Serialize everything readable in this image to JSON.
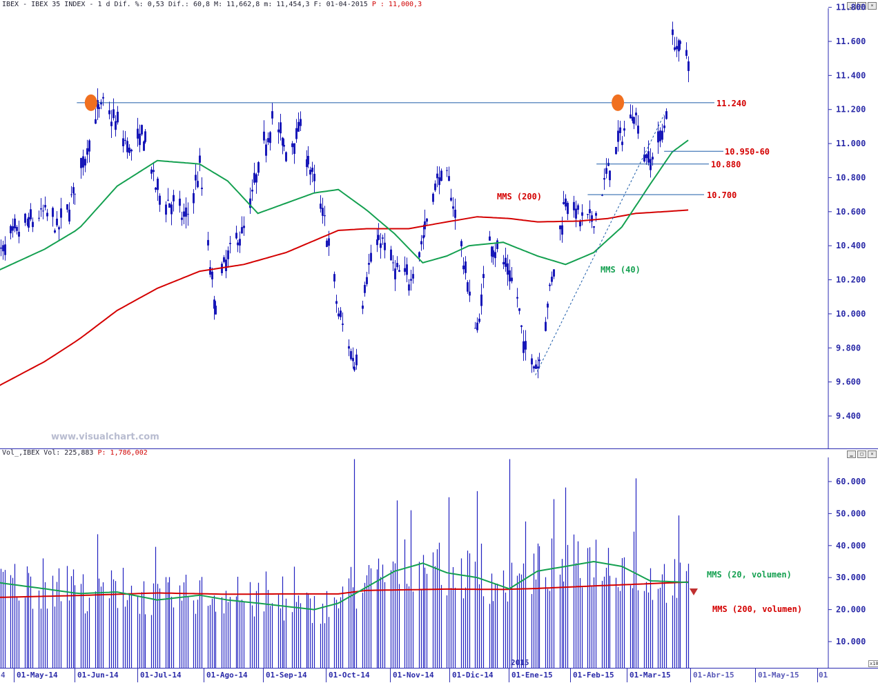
{
  "price_header": {
    "text": "IBEX - IBEX 35 INDEX -  1 d Dif. %: 0,53 Dif.: 60,8 M: 11,662,8 m: 11,454,3 F: 01-04-2015",
    "last_text": "P : 11,000,3"
  },
  "volume_header": {
    "text": "Vol_,IBEX Vol: 225,883",
    "last_text": "P: 1,786,002"
  },
  "watermark": "www.visualchart.com",
  "colors": {
    "price_bars": "#1818b8",
    "mms40": "#14a050",
    "mms200": "#d40000",
    "resistance": "#1a5aa8",
    "marker": "#f07020",
    "axis": "#2a2ab0"
  },
  "x_axis": {
    "year_label": "2015",
    "scale_tag": "x10",
    "labels": [
      "4",
      "01-May-14",
      "01-Jun-14",
      "01-Jul-14",
      "01-Ago-14",
      "01-Sep-14",
      "01-Oct-14",
      "01-Nov-14",
      "01-Dic-14",
      "01-Ene-15",
      "01-Feb-15",
      "01-Mar-15",
      "01-Abr-15",
      "01-May-15",
      "01"
    ]
  },
  "chart_data": [
    {
      "type": "candlestick",
      "title": "IBEX - IBEX 35 INDEX - 1 d",
      "x_range": [
        "2014-04-21",
        "2015-04-01"
      ],
      "ylim": [
        9300,
        11800
      ],
      "y_ticks": [
        "11.800",
        "11.600",
        "11.400",
        "11.200",
        "11.000",
        "10.800",
        "10.600",
        "10.400",
        "10.200",
        "10.000",
        "9.800",
        "9.600",
        "9.400"
      ],
      "y_tick_values": [
        11800,
        11600,
        11400,
        11200,
        11000,
        10800,
        10600,
        10400,
        10200,
        10000,
        9800,
        9600,
        9400
      ],
      "close_series": [
        [
          "2014-04-21",
          10330
        ],
        [
          "2014-05-01",
          10480
        ],
        [
          "2014-05-15",
          10600
        ],
        [
          "2014-05-22",
          10500
        ],
        [
          "2014-06-01",
          10800
        ],
        [
          "2014-06-09",
          11150
        ],
        [
          "2014-06-13",
          11230
        ],
        [
          "2014-06-20",
          11100
        ],
        [
          "2014-06-27",
          10950
        ],
        [
          "2014-07-03",
          11050
        ],
        [
          "2014-07-10",
          10700
        ],
        [
          "2014-07-17",
          10650
        ],
        [
          "2014-07-24",
          10550
        ],
        [
          "2014-07-31",
          10850
        ],
        [
          "2014-08-04",
          10400
        ],
        [
          "2014-08-07",
          10050
        ],
        [
          "2014-08-14",
          10350
        ],
        [
          "2014-08-22",
          10500
        ],
        [
          "2014-08-29",
          10850
        ],
        [
          "2014-09-05",
          11150
        ],
        [
          "2014-09-12",
          10950
        ],
        [
          "2014-09-19",
          11100
        ],
        [
          "2014-09-26",
          10750
        ],
        [
          "2014-10-01",
          10550
        ],
        [
          "2014-10-08",
          10000
        ],
        [
          "2014-10-16",
          9700
        ],
        [
          "2014-10-22",
          10250
        ],
        [
          "2014-10-29",
          10450
        ],
        [
          "2014-11-05",
          10250
        ],
        [
          "2014-11-12",
          10200
        ],
        [
          "2014-11-19",
          10450
        ],
        [
          "2014-11-26",
          10800
        ],
        [
          "2014-12-01",
          10800
        ],
        [
          "2014-12-05",
          10600
        ],
        [
          "2014-12-12",
          10100
        ],
        [
          "2014-12-16",
          9900
        ],
        [
          "2014-12-22",
          10450
        ],
        [
          "2014-12-29",
          10300
        ],
        [
          "2015-01-05",
          10100
        ],
        [
          "2015-01-08",
          9800
        ],
        [
          "2015-01-15",
          9700
        ],
        [
          "2015-01-22",
          10200
        ],
        [
          "2015-01-29",
          10700
        ],
        [
          "2015-02-05",
          10550
        ],
        [
          "2015-02-12",
          10550
        ],
        [
          "2015-02-19",
          10850
        ],
        [
          "2015-02-26",
          11050
        ],
        [
          "2015-03-04",
          11200
        ],
        [
          "2015-03-09",
          10950
        ],
        [
          "2015-03-12",
          10900
        ],
        [
          "2015-03-19",
          11100
        ],
        [
          "2015-03-23",
          11600
        ],
        [
          "2015-03-30",
          11520
        ]
      ],
      "mms40": [
        [
          "2014-04-21",
          10250
        ],
        [
          "2014-05-15",
          10380
        ],
        [
          "2014-06-01",
          10500
        ],
        [
          "2014-06-20",
          10750
        ],
        [
          "2014-07-10",
          10900
        ],
        [
          "2014-07-31",
          10880
        ],
        [
          "2014-08-14",
          10780
        ],
        [
          "2014-08-29",
          10590
        ],
        [
          "2014-09-12",
          10650
        ],
        [
          "2014-09-26",
          10710
        ],
        [
          "2014-10-08",
          10730
        ],
        [
          "2014-10-22",
          10610
        ],
        [
          "2014-11-05",
          10470
        ],
        [
          "2014-11-19",
          10300
        ],
        [
          "2014-12-01",
          10340
        ],
        [
          "2014-12-12",
          10400
        ],
        [
          "2014-12-29",
          10420
        ],
        [
          "2015-01-15",
          10340
        ],
        [
          "2015-01-29",
          10290
        ],
        [
          "2015-02-12",
          10360
        ],
        [
          "2015-02-26",
          10510
        ],
        [
          "2015-03-12",
          10760
        ],
        [
          "2015-03-23",
          10950
        ],
        [
          "2015-03-31",
          11020
        ]
      ],
      "mms200": [
        [
          "2014-04-21",
          9570
        ],
        [
          "2014-05-15",
          9720
        ],
        [
          "2014-06-01",
          9850
        ],
        [
          "2014-06-20",
          10020
        ],
        [
          "2014-07-10",
          10150
        ],
        [
          "2014-07-31",
          10250
        ],
        [
          "2014-08-22",
          10290
        ],
        [
          "2014-09-12",
          10360
        ],
        [
          "2014-09-26",
          10430
        ],
        [
          "2014-10-08",
          10490
        ],
        [
          "2014-10-22",
          10500
        ],
        [
          "2014-11-12",
          10500
        ],
        [
          "2014-12-01",
          10540
        ],
        [
          "2014-12-16",
          10570
        ],
        [
          "2015-01-01",
          10560
        ],
        [
          "2015-01-15",
          10540
        ],
        [
          "2015-02-05",
          10545
        ],
        [
          "2015-02-19",
          10560
        ],
        [
          "2015-03-05",
          10590
        ],
        [
          "2015-03-19",
          10600
        ],
        [
          "2015-03-31",
          10610
        ]
      ],
      "annotations": [
        {
          "label": "11.240",
          "value": 11240
        },
        {
          "label": "10.950-60",
          "value": 10955
        },
        {
          "label": "10.880",
          "value": 10880
        },
        {
          "label": "10.700",
          "value": 10700
        },
        {
          "label": "MMS (200)",
          "color": "#d40000"
        },
        {
          "label": "MMS (40)",
          "color": "#14a050"
        }
      ],
      "markers": [
        [
          "2014-06-07",
          11240
        ],
        [
          "2015-02-24",
          11240
        ]
      ],
      "trendline": [
        [
          "2015-01-14",
          9640
        ],
        [
          "2015-03-19",
          11170
        ]
      ]
    },
    {
      "type": "bar",
      "title": "Vol_,IBEX Vol",
      "ylim": [
        0,
        68000
      ],
      "y_ticks": [
        "60.000",
        "50.000",
        "40.000",
        "30.000",
        "20.000",
        "10.000"
      ],
      "y_tick_values": [
        60000,
        50000,
        40000,
        30000,
        20000,
        10000
      ],
      "peaks": [
        [
          "2014-10-16",
          67000
        ],
        [
          "2015-01-01",
          67000
        ],
        [
          "2014-12-16",
          57000
        ],
        [
          "2015-03-05",
          61000
        ]
      ],
      "mms20_volumen": [
        [
          "2014-04-21",
          28500
        ],
        [
          "2014-05-15",
          26500
        ],
        [
          "2014-06-01",
          25000
        ],
        [
          "2014-06-20",
          25500
        ],
        [
          "2014-07-10",
          23000
        ],
        [
          "2014-07-31",
          24500
        ],
        [
          "2014-08-14",
          23000
        ],
        [
          "2014-08-29",
          22000
        ],
        [
          "2014-09-12",
          21000
        ],
        [
          "2014-09-26",
          20000
        ],
        [
          "2014-10-08",
          22000
        ],
        [
          "2014-10-22",
          27000
        ],
        [
          "2014-11-05",
          32000
        ],
        [
          "2014-11-19",
          34500
        ],
        [
          "2014-12-01",
          31500
        ],
        [
          "2014-12-16",
          30000
        ],
        [
          "2015-01-01",
          26500
        ],
        [
          "2015-01-15",
          32000
        ],
        [
          "2015-01-29",
          33500
        ],
        [
          "2015-02-12",
          35000
        ],
        [
          "2015-02-26",
          33500
        ],
        [
          "2015-03-12",
          29000
        ],
        [
          "2015-03-31",
          28500
        ]
      ],
      "mms200_volumen": [
        [
          "2014-04-21",
          23800
        ],
        [
          "2014-06-01",
          24400
        ],
        [
          "2014-07-10",
          25200
        ],
        [
          "2014-08-14",
          24800
        ],
        [
          "2014-09-12",
          24900
        ],
        [
          "2014-10-08",
          24900
        ],
        [
          "2014-10-22",
          26000
        ],
        [
          "2014-12-01",
          26400
        ],
        [
          "2014-12-29",
          26300
        ],
        [
          "2015-01-15",
          26600
        ],
        [
          "2015-02-12",
          27400
        ],
        [
          "2015-03-12",
          28100
        ],
        [
          "2015-03-31",
          28600
        ]
      ],
      "annotations": [
        {
          "label": "MMS (20, volumen)",
          "color": "#14a050"
        },
        {
          "label": "MMS (200, volumen)",
          "color": "#d40000"
        }
      ]
    }
  ]
}
